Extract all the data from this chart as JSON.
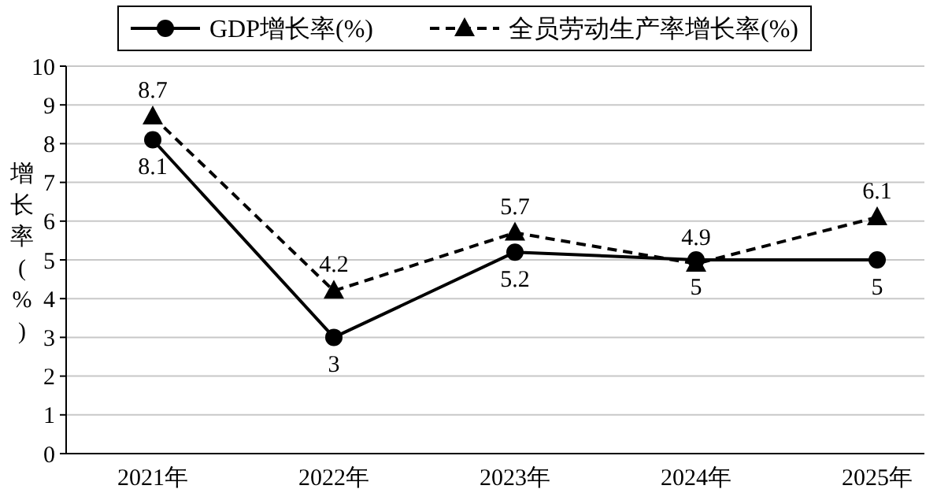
{
  "chart_data": {
    "type": "line",
    "ylabel": "增长率(%)",
    "categories": [
      "2021年",
      "2022年",
      "2023年",
      "2024年",
      "2025年"
    ],
    "series": [
      {
        "name": "GDP增长率(%)",
        "color": "#000000",
        "values": [
          8.1,
          3,
          5.2,
          5,
          5
        ],
        "marker": "circle",
        "line_style": "solid"
      },
      {
        "name": "全员劳动生产率增长率(%)",
        "color": "#000000",
        "values": [
          8.7,
          4.2,
          5.7,
          4.9,
          6.1
        ],
        "marker": "triangle",
        "line_style": "dashed"
      }
    ],
    "ylim": [
      0,
      10
    ],
    "yticks": [
      0,
      1,
      2,
      3,
      4,
      5,
      6,
      7,
      8,
      9,
      10
    ],
    "grid": "y",
    "legend": "top",
    "data_labels": true
  }
}
